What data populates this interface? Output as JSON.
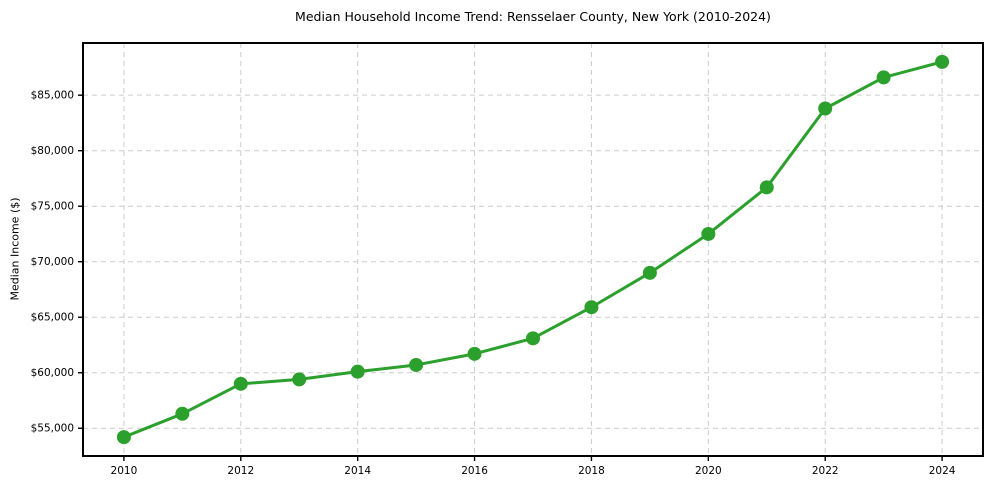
{
  "chart_data": {
    "type": "line",
    "title": "Median Household Income Trend: Rensselaer County, New York (2010-2024)",
    "ylabel": "Median Income ($)",
    "xlabel": "",
    "x": [
      2010,
      2011,
      2012,
      2013,
      2014,
      2015,
      2016,
      2017,
      2018,
      2019,
      2020,
      2021,
      2022,
      2023,
      2024
    ],
    "values": [
      54200,
      56300,
      59000,
      59400,
      60100,
      60700,
      61700,
      63100,
      65900,
      69000,
      72500,
      76700,
      83800,
      86600,
      88000
    ],
    "series_name": "Median household income",
    "xlim": [
      2009.3,
      2024.7
    ],
    "ylim": [
      52500,
      89700
    ],
    "xticks": [
      {
        "value": 2010,
        "label": "2010"
      },
      {
        "value": 2012,
        "label": "2012"
      },
      {
        "value": 2014,
        "label": "2014"
      },
      {
        "value": 2016,
        "label": "2016"
      },
      {
        "value": 2018,
        "label": "2018"
      },
      {
        "value": 2020,
        "label": "2020"
      },
      {
        "value": 2022,
        "label": "2022"
      },
      {
        "value": 2024,
        "label": "2024"
      }
    ],
    "yticks": [
      {
        "value": 55000,
        "label": "$55,000"
      },
      {
        "value": 60000,
        "label": "$60,000"
      },
      {
        "value": 65000,
        "label": "$65,000"
      },
      {
        "value": 70000,
        "label": "$70,000"
      },
      {
        "value": 75000,
        "label": "$75,000"
      },
      {
        "value": 80000,
        "label": "$80,000"
      },
      {
        "value": 85000,
        "label": "$85,000"
      }
    ],
    "grid": true,
    "grid_style": "dashed",
    "legend_position": "none",
    "colors": {
      "line": "#2ca02c",
      "marker": "#2ca02c",
      "grid": "#cccccc",
      "spine": "#000000",
      "text": "#000000",
      "background": "#ffffff"
    }
  }
}
